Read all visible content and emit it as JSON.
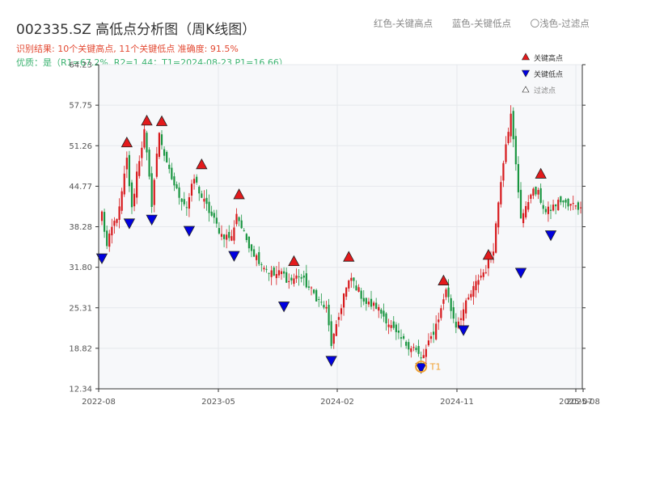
{
  "header": {
    "title": "002335.SZ 高低点分析图（周K线图）",
    "result_line": "识别结果: 10个关键高点, 11个关键低点  准确度: 91.5%",
    "quality_line": "优质：是（R1=67.2%, R2=1.44；T1=2024-08-23 P1=16.66）"
  },
  "top_legend": {
    "red": "红色-关键高点",
    "blue": "蓝色-关键低点",
    "light": "〇浅色-过滤点"
  },
  "legend": {
    "high": "关键高点",
    "low": "关键低点",
    "filtered": "过滤点"
  },
  "colors": {
    "up": "#d7191c",
    "down": "#1a9641",
    "high_marker": "#e31a1c",
    "low_marker": "#0000e0",
    "t1": "#f0a030",
    "grid": "#e6e8ec",
    "plot_bg": "#f7f8fa"
  },
  "chart_data": {
    "type": "candlestick",
    "period": "weekly",
    "ylim": [
      12.34,
      64.23
    ],
    "yticks": [
      "12.34",
      "18.82",
      "25.31",
      "31.80",
      "38.28",
      "44.77",
      "51.26",
      "57.75",
      "64.23"
    ],
    "x_ticks": [
      "2022-08",
      "2023-05",
      "2024-02",
      "2024-11",
      "2025-07",
      "2025-08"
    ],
    "close_path": [
      [
        0,
        40.5
      ],
      [
        2,
        35.0
      ],
      [
        4,
        38.0
      ],
      [
        7,
        41.0
      ],
      [
        10,
        49.0
      ],
      [
        12,
        41.0
      ],
      [
        14,
        47.0
      ],
      [
        17,
        53.5
      ],
      [
        20,
        42.0
      ],
      [
        23,
        53.5
      ],
      [
        26,
        48.0
      ],
      [
        30,
        44.0
      ],
      [
        34,
        41.5
      ],
      [
        37,
        46.0
      ],
      [
        40,
        43.0
      ],
      [
        44,
        40.0
      ],
      [
        48,
        37.0
      ],
      [
        52,
        36.5
      ],
      [
        54,
        40.5
      ],
      [
        57,
        37.0
      ],
      [
        61,
        34.0
      ],
      [
        65,
        32.0
      ],
      [
        69,
        30.5
      ],
      [
        72,
        31.0
      ],
      [
        75,
        29.5
      ],
      [
        79,
        30.5
      ],
      [
        82,
        29.0
      ],
      [
        86,
        27.0
      ],
      [
        90,
        25.0
      ],
      [
        92,
        19.5
      ],
      [
        94,
        22.0
      ],
      [
        97,
        27.5
      ],
      [
        100,
        30.0
      ],
      [
        103,
        28.0
      ],
      [
        106,
        26.0
      ],
      [
        110,
        25.5
      ],
      [
        114,
        23.5
      ],
      [
        118,
        21.0
      ],
      [
        122,
        19.5
      ],
      [
        125,
        19.0
      ],
      [
        128,
        17.0
      ],
      [
        130,
        18.5
      ],
      [
        133,
        21.5
      ],
      [
        136,
        25.0
      ],
      [
        138,
        28.5
      ],
      [
        140,
        25.0
      ],
      [
        142,
        22.5
      ],
      [
        145,
        25.0
      ],
      [
        148,
        27.5
      ],
      [
        151,
        30.0
      ],
      [
        154,
        31.5
      ],
      [
        157,
        35.0
      ],
      [
        160,
        46.0
      ],
      [
        162,
        52.0
      ],
      [
        164,
        56.0
      ],
      [
        166,
        48.0
      ],
      [
        168,
        40.0
      ],
      [
        170,
        41.0
      ],
      [
        172,
        44.0
      ],
      [
        175,
        43.5
      ],
      [
        178,
        40.5
      ],
      [
        181,
        41.5
      ],
      [
        184,
        42.5
      ],
      [
        187,
        41.5
      ],
      [
        190,
        42.0
      ],
      [
        192,
        41.0
      ]
    ],
    "key_highs": [
      {
        "i": 10,
        "price": 50.8
      },
      {
        "i": 18,
        "price": 54.3
      },
      {
        "i": 24,
        "price": 54.2
      },
      {
        "i": 40,
        "price": 47.3
      },
      {
        "i": 55,
        "price": 42.5
      },
      {
        "i": 77,
        "price": 31.8
      },
      {
        "i": 99,
        "price": 32.5
      },
      {
        "i": 137,
        "price": 28.7
      },
      {
        "i": 155,
        "price": 32.8
      },
      {
        "i": 176,
        "price": 45.8
      }
    ],
    "key_lows": [
      {
        "i": 0,
        "price": 34.2
      },
      {
        "i": 11,
        "price": 39.8
      },
      {
        "i": 20,
        "price": 40.4
      },
      {
        "i": 35,
        "price": 38.6
      },
      {
        "i": 53,
        "price": 34.6
      },
      {
        "i": 73,
        "price": 26.5
      },
      {
        "i": 92,
        "price": 17.8
      },
      {
        "i": 128,
        "price": 16.66
      },
      {
        "i": 145,
        "price": 22.7
      },
      {
        "i": 168,
        "price": 31.9
      },
      {
        "i": 180,
        "price": 37.9
      }
    ],
    "t1": {
      "label": "T1",
      "date": "2024-08-23",
      "price": 16.66
    }
  }
}
